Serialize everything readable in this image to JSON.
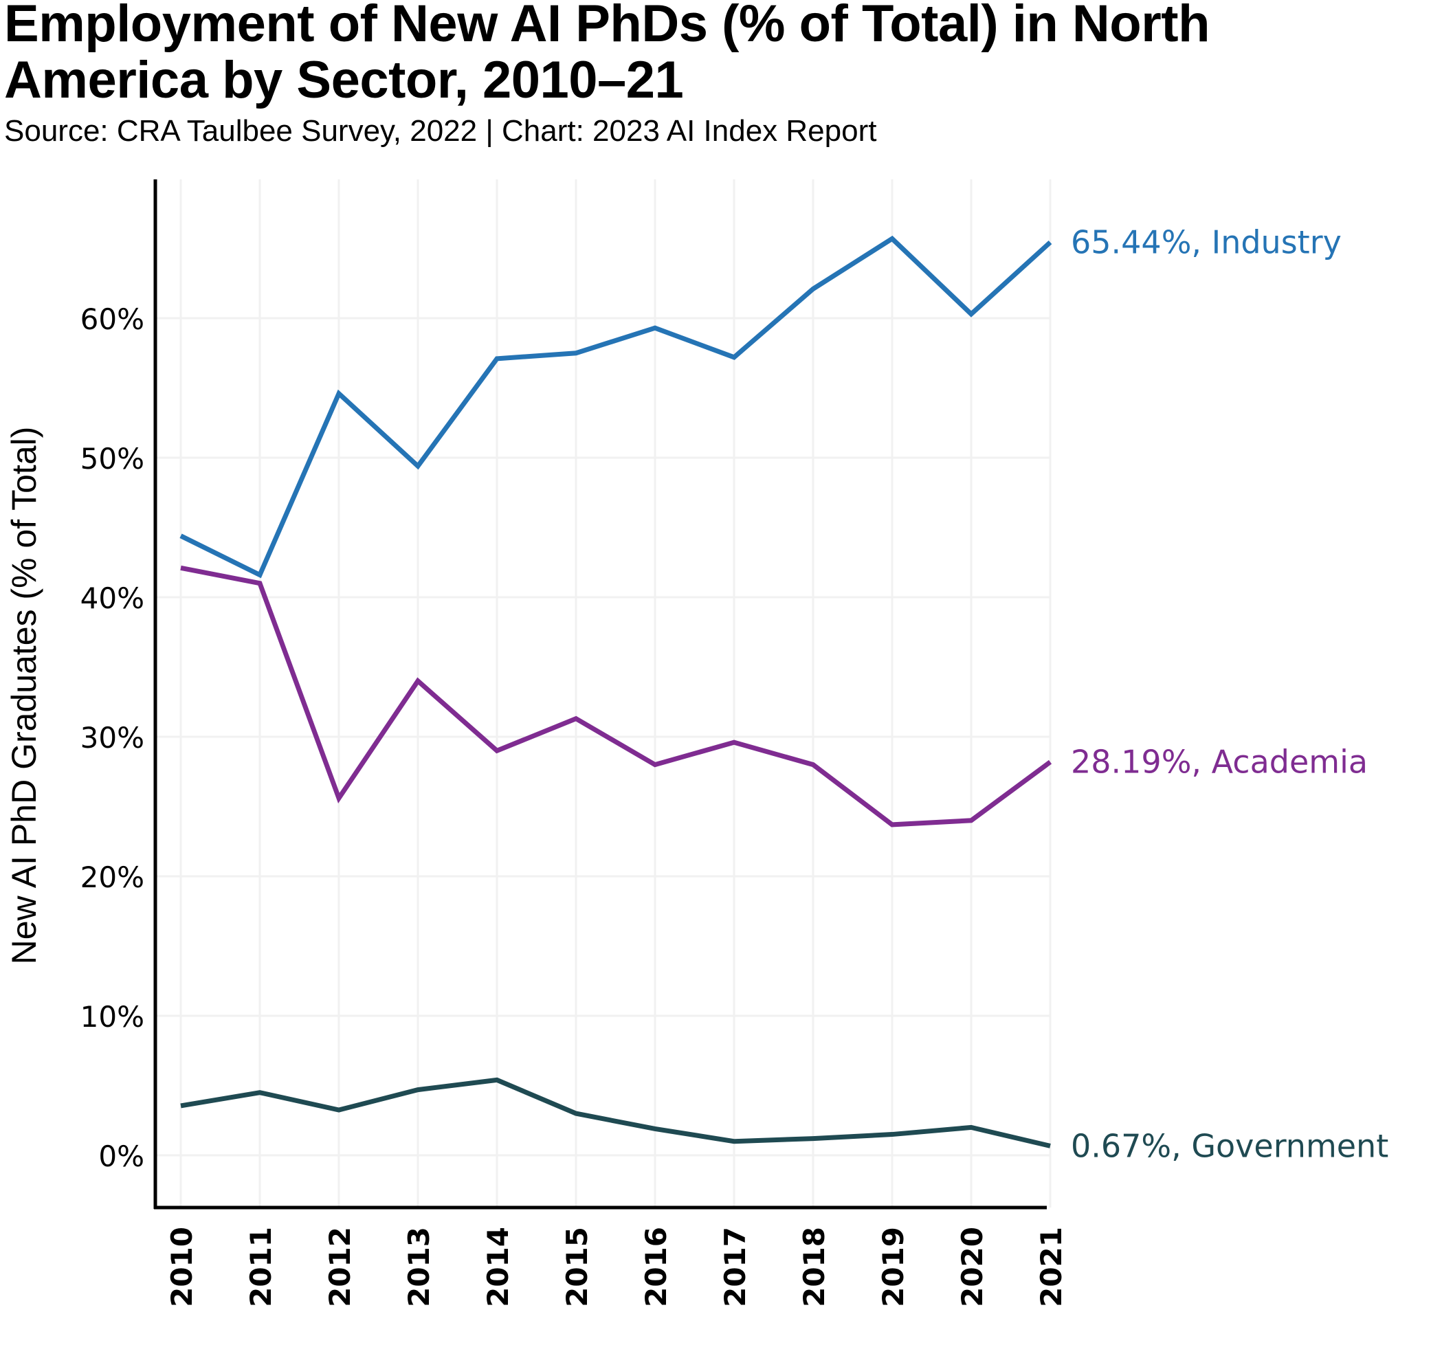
{
  "header": {
    "title": "Employment of New AI PhDs (% of Total) in North America by Sector, 2010–21",
    "subtitle": "Source: CRA Taulbee Survey, 2022 | Chart: 2023 AI Index Report"
  },
  "chart_data": {
    "type": "line",
    "title": "Employment of New AI PhDs (% of Total) in North America by Sector, 2010–21",
    "subtitle": "Source: CRA Taulbee Survey, 2022 | Chart: 2023 AI Index Report",
    "xlabel": "",
    "ylabel": "New AI PhD Graduates (% of Total)",
    "x": [
      "2010",
      "2011",
      "2012",
      "2013",
      "2014",
      "2015",
      "2016",
      "2017",
      "2018",
      "2019",
      "2020",
      "2021"
    ],
    "ylim": [
      -3.5,
      69
    ],
    "yticks": [
      0,
      10,
      20,
      30,
      40,
      50,
      60
    ],
    "ytick_labels": [
      "0%",
      "10%",
      "20%",
      "30%",
      "40%",
      "50%",
      "60%"
    ],
    "grid": true,
    "legend": "none (direct labels at line ends, right)",
    "series": [
      {
        "name": "Industry",
        "color": "#2574b5",
        "values": [
          44.4,
          41.6,
          54.6,
          49.4,
          57.1,
          57.5,
          59.3,
          57.2,
          62.1,
          65.7,
          60.3,
          65.44
        ],
        "end_label": "65.44%, Industry"
      },
      {
        "name": "Academia",
        "color": "#7f2c91",
        "values": [
          42.1,
          41.0,
          25.6,
          34.0,
          29.0,
          31.3,
          28.0,
          29.6,
          28.0,
          23.7,
          24.0,
          28.19
        ],
        "end_label": "28.19%, Academia"
      },
      {
        "name": "Government",
        "color": "#1f4a52",
        "values": [
          3.55,
          4.5,
          3.25,
          4.7,
          5.4,
          3.0,
          1.9,
          1.0,
          1.2,
          1.5,
          2.0,
          0.67
        ],
        "end_label": "0.67%, Government"
      }
    ]
  }
}
